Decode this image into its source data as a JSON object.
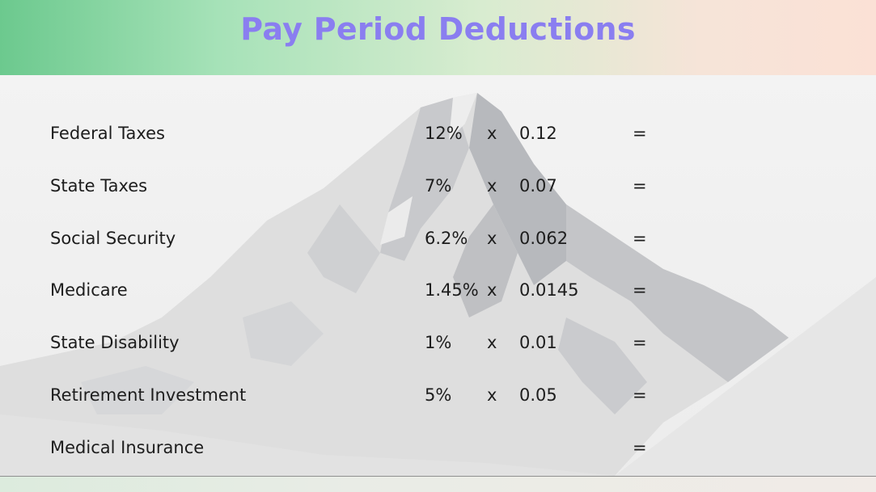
{
  "title": "Pay Period Deductions",
  "rows": [
    {
      "label": "Federal Taxes",
      "percent": "12%",
      "times": "x",
      "decimal": "0.12",
      "equals": "="
    },
    {
      "label": "State Taxes",
      "percent": "7%",
      "times": "x",
      "decimal": "0.07",
      "equals": "="
    },
    {
      "label": "Social Security",
      "percent": "6.2%",
      "times": "x",
      "decimal": "0.062",
      "equals": "="
    },
    {
      "label": "Medicare",
      "percent": "1.45%",
      "times": "x",
      "decimal": "0.0145",
      "equals": "="
    },
    {
      "label": "State Disability",
      "percent": "1%",
      "times": "x",
      "decimal": "0.01",
      "equals": "="
    },
    {
      "label": "Retirement Investment",
      "percent": "5%",
      "times": "x",
      "decimal": "0.05",
      "equals": "="
    },
    {
      "label": "Medical Insurance",
      "percent": "",
      "times": "",
      "decimal": "",
      "equals": "="
    }
  ],
  "colors": {
    "title": "#8a7ef0",
    "header_left": "#6cc98e",
    "header_right": "#fbe1d6"
  }
}
